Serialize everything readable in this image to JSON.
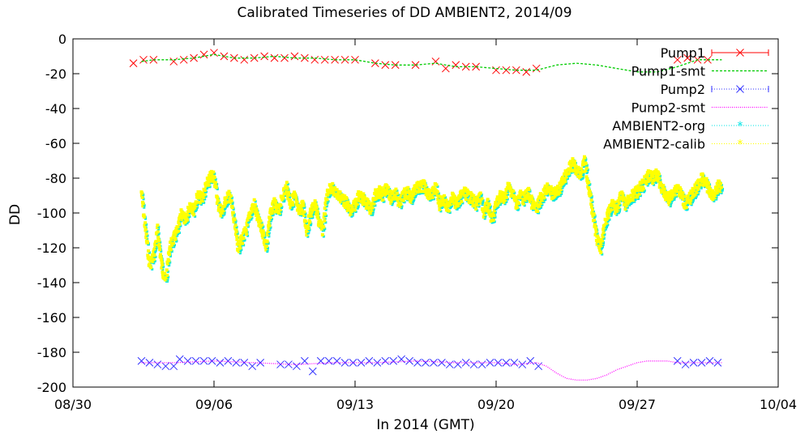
{
  "chart_data": {
    "type": "line",
    "title": "Calibrated Timeseries of DD AMBIENT2, 2014/09",
    "xlabel": "In 2014 (GMT)",
    "ylabel": "DD",
    "x_ticks": [
      "08/30",
      "09/06",
      "09/13",
      "09/20",
      "09/27",
      "10/04"
    ],
    "x_tick_dates": [
      "2014-08-30",
      "2014-09-06",
      "2014-09-13",
      "2014-09-20",
      "2014-09-27",
      "2014-10-04"
    ],
    "xlim": [
      "2014-08-30",
      "2014-10-04"
    ],
    "y_ticks": [
      0,
      -20,
      -40,
      -60,
      -80,
      -100,
      -120,
      -140,
      -160,
      -180,
      -200
    ],
    "ylim": [
      -200,
      0
    ],
    "grid": false,
    "legend_position": "top-right",
    "series": [
      {
        "name": "Pump1",
        "color": "#ff0000",
        "style": "points-x",
        "x": [
          "2014-09-02",
          "2014-09-02.5",
          "2014-09-03",
          "2014-09-04",
          "2014-09-04.5",
          "2014-09-05",
          "2014-09-05.5",
          "2014-09-06",
          "2014-09-06.5",
          "2014-09-07",
          "2014-09-07.5",
          "2014-09-08",
          "2014-09-08.5",
          "2014-09-09",
          "2014-09-09.5",
          "2014-09-10",
          "2014-09-10.5",
          "2014-09-11",
          "2014-09-11.5",
          "2014-09-12",
          "2014-09-12.5",
          "2014-09-13",
          "2014-09-14",
          "2014-09-14.5",
          "2014-09-15",
          "2014-09-16",
          "2014-09-17",
          "2014-09-17.5",
          "2014-09-18",
          "2014-09-18.5",
          "2014-09-19",
          "2014-09-20",
          "2014-09-20.5",
          "2014-09-21",
          "2014-09-21.5",
          "2014-09-22",
          "2014-09-29",
          "2014-09-29.5",
          "2014-09-30",
          "2014-09-30.5"
        ],
        "y": [
          -14,
          -12,
          -12,
          -13,
          -12,
          -11,
          -9,
          -8,
          -10,
          -11,
          -12,
          -11,
          -10,
          -11,
          -11,
          -10,
          -11,
          -12,
          -12,
          -12,
          -12,
          -12,
          -14,
          -15,
          -15,
          -15,
          -13,
          -17,
          -15,
          -16,
          -16,
          -18,
          -18,
          -18,
          -19,
          -17,
          -12,
          -11,
          -12,
          -12
        ]
      },
      {
        "name": "Pump1-smt",
        "color": "#00cc00",
        "style": "line-dashed",
        "x": [
          2.4,
          3,
          4,
          5,
          6,
          7,
          8,
          9,
          10,
          11,
          12,
          13,
          14,
          15,
          16,
          17,
          18,
          19,
          20,
          21,
          22,
          23,
          24,
          25,
          26,
          27,
          28,
          29,
          30,
          31.2
        ],
        "y": [
          -13,
          -12,
          -12,
          -11,
          -9,
          -11,
          -11,
          -10,
          -11,
          -11,
          -12,
          -12,
          -14,
          -15,
          -15,
          -14,
          -16,
          -16,
          -17,
          -18,
          -18,
          -15,
          -14,
          -15,
          -17,
          -19,
          -19,
          -16,
          -12,
          -12
        ]
      },
      {
        "name": "Pump2",
        "color": "#3333ff",
        "style": "points-x",
        "x": [
          2.4,
          2.8,
          3.2,
          3.6,
          4.0,
          4.3,
          4.7,
          5.1,
          5.5,
          5.9,
          6.3,
          6.7,
          7.1,
          7.5,
          7.9,
          8.3,
          9.3,
          9.7,
          10.1,
          10.5,
          10.9,
          11.3,
          11.7,
          12.1,
          12.5,
          12.9,
          13.3,
          13.7,
          14.1,
          14.5,
          14.9,
          15.3,
          15.7,
          16.1,
          16.5,
          16.9,
          17.3,
          17.7,
          18.1,
          18.5,
          18.9,
          19.3,
          19.7,
          20.1,
          20.5,
          20.9,
          21.3,
          21.7,
          22.1,
          29.0,
          29.4,
          29.8,
          30.2,
          30.6,
          31.0
        ],
        "y": [
          -185,
          -186,
          -187,
          -188,
          -188,
          -184,
          -185,
          -185,
          -185,
          -185,
          -186,
          -185,
          -186,
          -186,
          -188,
          -186,
          -187,
          -187,
          -188,
          -185,
          -191,
          -185,
          -185,
          -185,
          -186,
          -186,
          -186,
          -185,
          -186,
          -185,
          -185,
          -184,
          -185,
          -186,
          -186,
          -186,
          -186,
          -187,
          -187,
          -186,
          -187,
          -187,
          -186,
          -186,
          -186,
          -186,
          -187,
          -185,
          -188,
          -185,
          -187,
          -186,
          -186,
          -185,
          -186
        ]
      },
      {
        "name": "Pump2-smt",
        "color": "#ff00ff",
        "style": "line-dotted",
        "x": [
          2.4,
          4,
          6,
          8,
          10,
          12,
          14,
          16,
          18,
          20,
          21,
          22,
          22.5,
          23,
          23.5,
          24,
          24.5,
          25,
          25.5,
          26,
          26.5,
          27,
          27.5,
          28,
          28.5,
          29,
          30,
          31.2
        ],
        "y": [
          -186,
          -186,
          -185,
          -186,
          -187,
          -186,
          -186,
          -185,
          -186,
          -186,
          -187,
          -186,
          -188,
          -192,
          -195,
          -196,
          -196,
          -195,
          -193,
          -190,
          -188,
          -186,
          -185,
          -185,
          -185,
          -186,
          -186,
          -186
        ]
      },
      {
        "name": "AMBIENT2-org",
        "color": "#00e5e5",
        "style": "points-star"
      },
      {
        "name": "AMBIENT2-calib",
        "color": "#ffff00",
        "style": "points-dense",
        "x": [
          2.4,
          2.6,
          2.8,
          3.0,
          3.2,
          3.4,
          3.6,
          3.8,
          4.0,
          4.2,
          4.4,
          4.6,
          4.8,
          5.0,
          5.2,
          5.4,
          5.6,
          5.8,
          6.0,
          6.2,
          6.4,
          6.6,
          6.8,
          7.0,
          7.2,
          7.4,
          7.6,
          7.8,
          8.0,
          8.2,
          8.4,
          8.6,
          8.8,
          9.0,
          9.2,
          9.4,
          9.6,
          9.8,
          10.0,
          10.2,
          10.4,
          10.6,
          10.8,
          11.0,
          11.2,
          11.4,
          11.6,
          11.8,
          12.0,
          12.2,
          12.4,
          12.6,
          12.8,
          13.0,
          13.2,
          13.4,
          13.6,
          13.8,
          14.0,
          14.2,
          14.4,
          14.6,
          14.8,
          15.0,
          15.2,
          15.4,
          15.6,
          15.8,
          16.0,
          16.2,
          16.4,
          16.6,
          16.8,
          17.0,
          17.2,
          17.4,
          17.6,
          17.8,
          18.0,
          18.2,
          18.4,
          18.6,
          18.8,
          19.0,
          19.2,
          19.4,
          19.6,
          19.8,
          20.0,
          20.2,
          20.4,
          20.6,
          20.8,
          21.0,
          21.2,
          21.4,
          21.6,
          21.8,
          22.0,
          22.2,
          22.4,
          22.6,
          22.8,
          23.0,
          23.2,
          23.4,
          23.6,
          23.8,
          24.0,
          24.2,
          24.4,
          24.6,
          24.8,
          25.0,
          25.2,
          25.4,
          25.6,
          25.8,
          26.0,
          26.2,
          26.4,
          26.6,
          26.8,
          27.0,
          27.2,
          27.4,
          27.6,
          27.8,
          28.0,
          28.2,
          28.4,
          28.6,
          28.8,
          29.0,
          29.2,
          29.4,
          29.6,
          29.8,
          30.0,
          30.2,
          30.4,
          30.6,
          30.8,
          31.0,
          31.2
        ],
        "y": [
          -88,
          -110,
          -130,
          -125,
          -110,
          -130,
          -140,
          -120,
          -115,
          -110,
          -100,
          -105,
          -95,
          -98,
          -90,
          -92,
          -85,
          -80,
          -78,
          -95,
          -100,
          -92,
          -90,
          -105,
          -120,
          -115,
          -110,
          -100,
          -95,
          -105,
          -110,
          -120,
          -100,
          -95,
          -100,
          -90,
          -85,
          -95,
          -90,
          -100,
          -95,
          -110,
          -100,
          -95,
          -105,
          -110,
          -90,
          -85,
          -88,
          -90,
          -92,
          -95,
          -100,
          -95,
          -90,
          -92,
          -95,
          -98,
          -90,
          -88,
          -90,
          -85,
          -92,
          -88,
          -95,
          -90,
          -88,
          -92,
          -85,
          -86,
          -84,
          -88,
          -90,
          -85,
          -95,
          -92,
          -98,
          -90,
          -95,
          -92,
          -88,
          -90,
          -92,
          -95,
          -90,
          -100,
          -95,
          -105,
          -95,
          -90,
          -92,
          -85,
          -88,
          -95,
          -90,
          -92,
          -88,
          -95,
          -98,
          -92,
          -88,
          -85,
          -90,
          -88,
          -85,
          -80,
          -75,
          -72,
          -75,
          -78,
          -70,
          -85,
          -100,
          -115,
          -120,
          -105,
          -100,
          -95,
          -98,
          -90,
          -95,
          -92,
          -90,
          -88,
          -85,
          -82,
          -78,
          -80,
          -78,
          -85,
          -90,
          -92,
          -88,
          -85,
          -90,
          -95,
          -92,
          -88,
          -85,
          -80,
          -82,
          -88,
          -90,
          -85,
          -84
        ]
      }
    ]
  }
}
